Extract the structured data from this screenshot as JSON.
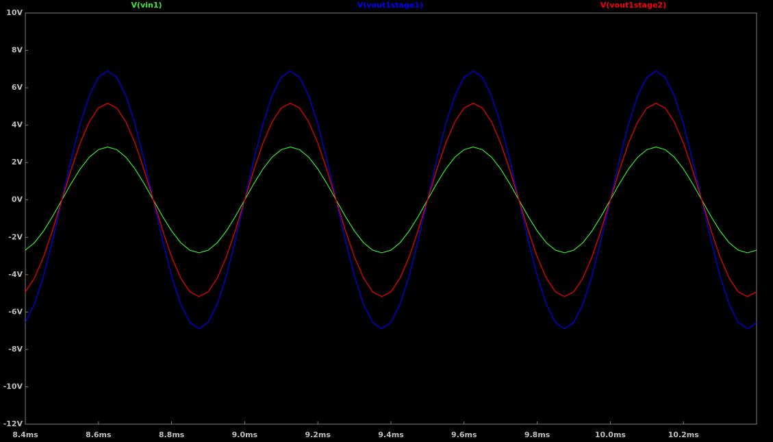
{
  "chart_data": {
    "type": "line",
    "x": [
      8.4,
      8.425,
      8.45,
      8.475,
      8.5,
      8.525,
      8.55,
      8.575,
      8.6,
      8.625,
      8.65,
      8.675,
      8.7,
      8.725,
      8.75,
      8.775,
      8.8,
      8.825,
      8.85,
      8.875,
      8.9,
      8.925,
      8.95,
      8.975,
      9.0,
      9.025,
      9.05,
      9.075,
      9.1,
      9.125,
      9.15,
      9.175,
      9.2,
      9.225,
      9.25,
      9.275,
      9.3,
      9.325,
      9.35,
      9.375,
      9.4,
      9.425,
      9.45,
      9.475,
      9.5,
      9.525,
      9.55,
      9.575,
      9.6,
      9.625,
      9.65,
      9.675,
      9.7,
      9.725,
      9.75,
      9.775,
      9.8,
      9.825,
      9.85,
      9.875,
      9.9,
      9.925,
      9.95,
      9.975,
      10.0,
      10.025,
      10.05,
      10.075,
      10.1,
      10.125,
      10.15,
      10.175,
      10.2,
      10.225,
      10.25,
      10.275,
      10.3,
      10.325,
      10.35,
      10.375,
      10.4
    ],
    "series": [
      {
        "name": "V(vin1)",
        "color": "#33ee33",
        "values": [
          -2.69,
          -2.29,
          -1.66,
          -0.87,
          0,
          0.87,
          1.66,
          2.29,
          2.69,
          2.83,
          2.69,
          2.29,
          1.66,
          0.87,
          0,
          -0.87,
          -1.66,
          -2.29,
          -2.69,
          -2.83,
          -2.69,
          -2.29,
          -1.66,
          -0.87,
          0,
          0.87,
          1.66,
          2.29,
          2.69,
          2.83,
          2.69,
          2.29,
          1.66,
          0.87,
          0,
          -0.87,
          -1.66,
          -2.29,
          -2.69,
          -2.83,
          -2.69,
          -2.29,
          -1.66,
          -0.87,
          0,
          0.87,
          1.66,
          2.29,
          2.69,
          2.83,
          2.69,
          2.29,
          1.66,
          0.87,
          0,
          -0.87,
          -1.66,
          -2.29,
          -2.69,
          -2.83,
          -2.69,
          -2.29,
          -1.66,
          -0.87,
          0,
          0.87,
          1.66,
          2.29,
          2.69,
          2.83,
          2.69,
          2.29,
          1.66,
          0.87,
          0,
          -0.87,
          -1.66,
          -2.29,
          -2.69,
          -2.83,
          -2.69
        ]
      },
      {
        "name": "V(vout1stage1)",
        "color": "#0000ff",
        "values": [
          -6.56,
          -5.58,
          -4.06,
          -2.13,
          0,
          2.13,
          4.06,
          5.58,
          6.56,
          6.9,
          6.56,
          5.58,
          4.06,
          2.13,
          0,
          -2.13,
          -4.06,
          -5.58,
          -6.56,
          -6.9,
          -6.56,
          -5.58,
          -4.06,
          -2.13,
          0,
          2.13,
          4.06,
          5.58,
          6.56,
          6.9,
          6.56,
          5.58,
          4.06,
          2.13,
          0,
          -2.13,
          -4.06,
          -5.58,
          -6.56,
          -6.9,
          -6.56,
          -5.58,
          -4.06,
          -2.13,
          0,
          2.13,
          4.06,
          5.58,
          6.56,
          6.9,
          6.56,
          5.58,
          4.06,
          2.13,
          0,
          -2.13,
          -4.06,
          -5.58,
          -6.56,
          -6.9,
          -6.56,
          -5.58,
          -4.06,
          -2.13,
          0,
          2.13,
          4.06,
          5.58,
          6.56,
          6.9,
          6.56,
          5.58,
          4.06,
          2.13,
          0,
          -2.13,
          -4.06,
          -5.58,
          -6.56,
          -6.9,
          -6.56
        ]
      },
      {
        "name": "V(vout1stage2)",
        "color": "#ff0000",
        "values": [
          -4.92,
          -4.18,
          -3.04,
          -1.6,
          0,
          1.6,
          3.04,
          4.18,
          4.92,
          5.17,
          4.92,
          4.18,
          3.04,
          1.6,
          0,
          -1.6,
          -3.04,
          -4.18,
          -4.92,
          -5.17,
          -4.92,
          -4.18,
          -3.04,
          -1.6,
          0,
          1.6,
          3.04,
          4.18,
          4.92,
          5.17,
          4.92,
          4.18,
          3.04,
          1.6,
          0,
          -1.6,
          -3.04,
          -4.18,
          -4.92,
          -5.17,
          -4.92,
          -4.18,
          -3.04,
          -1.6,
          0,
          1.6,
          3.04,
          4.18,
          4.92,
          5.17,
          4.92,
          4.18,
          3.04,
          1.6,
          0,
          -1.6,
          -3.04,
          -4.18,
          -4.92,
          -5.17,
          -4.92,
          -4.18,
          -3.04,
          -1.6,
          0,
          1.6,
          3.04,
          4.18,
          4.92,
          5.17,
          4.92,
          4.18,
          3.04,
          1.6,
          0,
          -1.6,
          -3.04,
          -4.18,
          -4.92,
          -5.17,
          -4.92
        ]
      }
    ],
    "xlim": [
      8.4,
      10.4
    ],
    "xticks": [
      {
        "value": 8.4,
        "label": "8.4ms"
      },
      {
        "value": 8.6,
        "label": "8.6ms"
      },
      {
        "value": 8.8,
        "label": "8.8ms"
      },
      {
        "value": 9.0,
        "label": "9.0ms"
      },
      {
        "value": 9.2,
        "label": "9.2ms"
      },
      {
        "value": 9.4,
        "label": "9.4ms"
      },
      {
        "value": 9.6,
        "label": "9.6ms"
      },
      {
        "value": 9.8,
        "label": "9.8ms"
      },
      {
        "value": 10.0,
        "label": "10.0ms"
      },
      {
        "value": 10.2,
        "label": "10.2ms"
      }
    ],
    "ylim": [
      -12,
      10
    ],
    "yticks": [
      {
        "value": 10,
        "label": "10V"
      },
      {
        "value": 8,
        "label": "8V"
      },
      {
        "value": 6,
        "label": "6V"
      },
      {
        "value": 4,
        "label": "4V"
      },
      {
        "value": 2,
        "label": "2V"
      },
      {
        "value": 0,
        "label": "0V"
      },
      {
        "value": -2,
        "label": "-2V"
      },
      {
        "value": -4,
        "label": "-4V"
      },
      {
        "value": -6,
        "label": "-6V"
      },
      {
        "value": -8,
        "label": "-8V"
      },
      {
        "value": -10,
        "label": "-10V"
      },
      {
        "value": -12,
        "label": "-12V"
      }
    ],
    "grid": false
  }
}
